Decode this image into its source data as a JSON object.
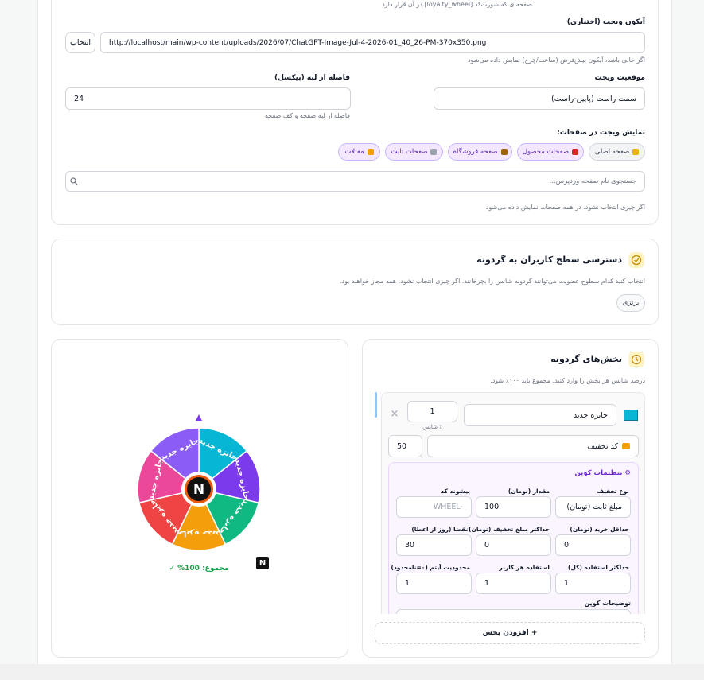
{
  "settings_card": {
    "shortcode_hint": "صفحه‌ای که شورت‌کد [loyalty_wheel] در آن قرار دارد",
    "icon_label": "آیکون ویجت (اختیاری)",
    "icon_button": "انتخاب",
    "icon_url": "http://localhost/main/wp-content/uploads/2026/07/ChatGPT-Image-Jul-4-2026-01_40_26-PM-370x350.png",
    "icon_hint": "اگر خالی باشد، آیکون پیش‌فرض (ساعت/چرخ) نمایش داده می‌شود",
    "position_label": "موقعیت ویجت",
    "position_value": "سمت راست (پایین-راست)",
    "offset_label": "فاصله از لبه (پیکسل)",
    "offset_value": 24,
    "offset_hint": "فاصله از لبه صفحه و کف صفحه",
    "pages_label": "نمایش ویجت در صفحات:",
    "page_chips": [
      "صفحه اصلی",
      "صفحات محصول",
      "صفحه فروشگاه",
      "صفحات ثابت",
      "مقالات"
    ],
    "search_placeholder": "جستجوی نام صفحه وردپرس...",
    "pages_hint": "اگر چیزی انتخاب نشود، در همه صفحات نمایش داده می‌شود"
  },
  "access_card": {
    "title": "دسترسی سطح کاربران به گردونه",
    "description": "انتخاب کنید کدام سطوح عضویت می‌توانند گردونه شانس را بچرخانند. اگر چیزی انتخاب نشود، همه مجاز خواهند بود.",
    "levels": [
      "برنزی"
    ]
  },
  "segments_card": {
    "title": "بخش‌های گردونه",
    "description": "درصد شانس هر بخش را وارد کنید. مجموع باید ۱۰۰٪ شود.",
    "segment": {
      "name": "جایزه جدید",
      "chance": 1,
      "chance_label": "٪ شانس",
      "remove": "×",
      "type": "کد تخفیف",
      "value": 50
    },
    "coupon": {
      "title": "تنظیمات کوپن",
      "fields": [
        {
          "label": "نوع تخفیف",
          "value": "مبلغ ثابت (تومان)"
        },
        {
          "label": "مقدار (تومان)",
          "value": 100
        },
        {
          "label": "پیشوند کد",
          "value": "WHEEL-"
        },
        {
          "label": "حداقل خرید (تومان)",
          "value": 0
        },
        {
          "label": "حداکثر مبلغ تخفیف (تومان)",
          "value": 0
        },
        {
          "label": "انقضا (روز از اعطا)",
          "value": 30
        },
        {
          "label": "حداکثر استفاده (کل)",
          "value": 1
        },
        {
          "label": "استفاده هر کاربر",
          "value": 1
        },
        {
          "label": "محدودیت آیتم (۰=نامحدود)",
          "value": 1
        }
      ],
      "description_label": "توضیحات کوپن"
    },
    "add_button": "+ افزودن بخش"
  },
  "preview_card": {
    "wheel_labels": [
      "جایزه جدید",
      "جایزه جدید",
      "جایزه جدید",
      "جایزه جدید",
      "جایزه جدید",
      "جایزه جدید",
      "جایزه جدید"
    ],
    "wheel_colors": [
      "#06b6d4",
      "#7c3aed",
      "#10b981",
      "#f59e0b",
      "#ef4444",
      "#ec4899",
      "#8b5cf6"
    ],
    "logo": "N",
    "total": "مجموع: 100% ✓"
  }
}
